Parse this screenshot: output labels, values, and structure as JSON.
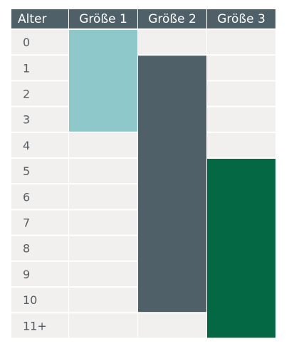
{
  "chart_data": {
    "type": "table",
    "columns": [
      "Alter",
      "Größe 1",
      "Größe 2",
      "Größe 3"
    ],
    "rows": [
      "0",
      "1",
      "2",
      "3",
      "4",
      "5",
      "6",
      "7",
      "8",
      "9",
      "10",
      "11+"
    ],
    "series": [
      {
        "name": "Größe 1",
        "start_row": 0,
        "end_row": 3,
        "color": "#8fc8cb"
      },
      {
        "name": "Größe 2",
        "start_row": 1,
        "end_row": 10,
        "color": "#4f6068"
      },
      {
        "name": "Größe 3",
        "start_row": 5,
        "end_row": 11,
        "color": "#046845"
      }
    ],
    "colors": {
      "header_bg": "#4f6068",
      "cell_bg": "#f1f0ef",
      "text": "#555b5f"
    }
  }
}
